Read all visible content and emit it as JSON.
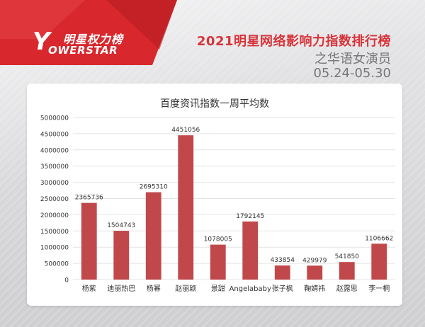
{
  "brand": {
    "logo_cn": "明星权力榜",
    "logo_en": "OWERSTAR",
    "logo_letter": "Y"
  },
  "header": {
    "title": "2021明星网络影响力指数排行榜",
    "subtitle": "之华语女演员",
    "date_range": "05.24-05.30"
  },
  "colors": {
    "bar": "#c0484b",
    "accent": "#d7343a"
  },
  "chart_data": {
    "type": "bar",
    "title": "百度资讯指数一周平均数",
    "categories": [
      "杨紫",
      "迪丽热巴",
      "杨幂",
      "赵丽颖",
      "景甜",
      "Angelababy",
      "张子枫",
      "鞠婧祎",
      "赵露思",
      "李一桐"
    ],
    "values": [
      2365736,
      1504743,
      2695310,
      4451056,
      1078005,
      1792145,
      433854,
      429979,
      541850,
      1106662
    ],
    "ylim": [
      0,
      5000000
    ],
    "yticks": [
      0,
      500000,
      1000000,
      1500000,
      2000000,
      2500000,
      3000000,
      3500000,
      4000000,
      4500000,
      5000000
    ],
    "grid": true,
    "xlabel": "",
    "ylabel": ""
  }
}
